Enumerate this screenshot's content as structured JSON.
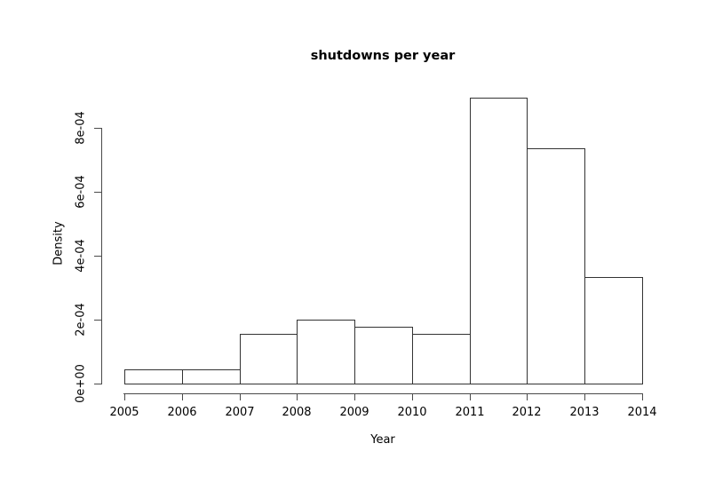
{
  "figure": {
    "background_color": "#ffffff",
    "axis_color": "#4a4a4a",
    "bar_border_color": "#333333",
    "bar_fill_color": "#ffffff",
    "text_color": "#000000"
  },
  "chart_data": {
    "type": "bar",
    "subtype": "histogram",
    "title": "shutdowns per year",
    "xlabel": "Year",
    "ylabel": "Density",
    "categories": [
      "2005-2006",
      "2006-2007",
      "2007-2008",
      "2008-2009",
      "2009-2010",
      "2010-2011",
      "2011-2012",
      "2012-2013",
      "2013-2014"
    ],
    "values": [
      4.4e-05,
      4.4e-05,
      0.000156,
      0.0002,
      0.000178,
      0.000156,
      0.000894,
      0.000736,
      0.000333
    ],
    "x_ticks": [
      "2005",
      "2006",
      "2007",
      "2008",
      "2009",
      "2010",
      "2011",
      "2012",
      "2013",
      "2014"
    ],
    "y_ticks": [
      "0e+00",
      "2e-04",
      "4e-04",
      "6e-04",
      "8e-04"
    ],
    "y_tick_values": [
      0,
      0.0002,
      0.0004,
      0.0006,
      0.0008
    ],
    "xlim": [
      2005,
      2014
    ],
    "ylim": [
      0,
      0.00093
    ],
    "bin_width_years": 1,
    "grid": false,
    "legend": "none"
  }
}
